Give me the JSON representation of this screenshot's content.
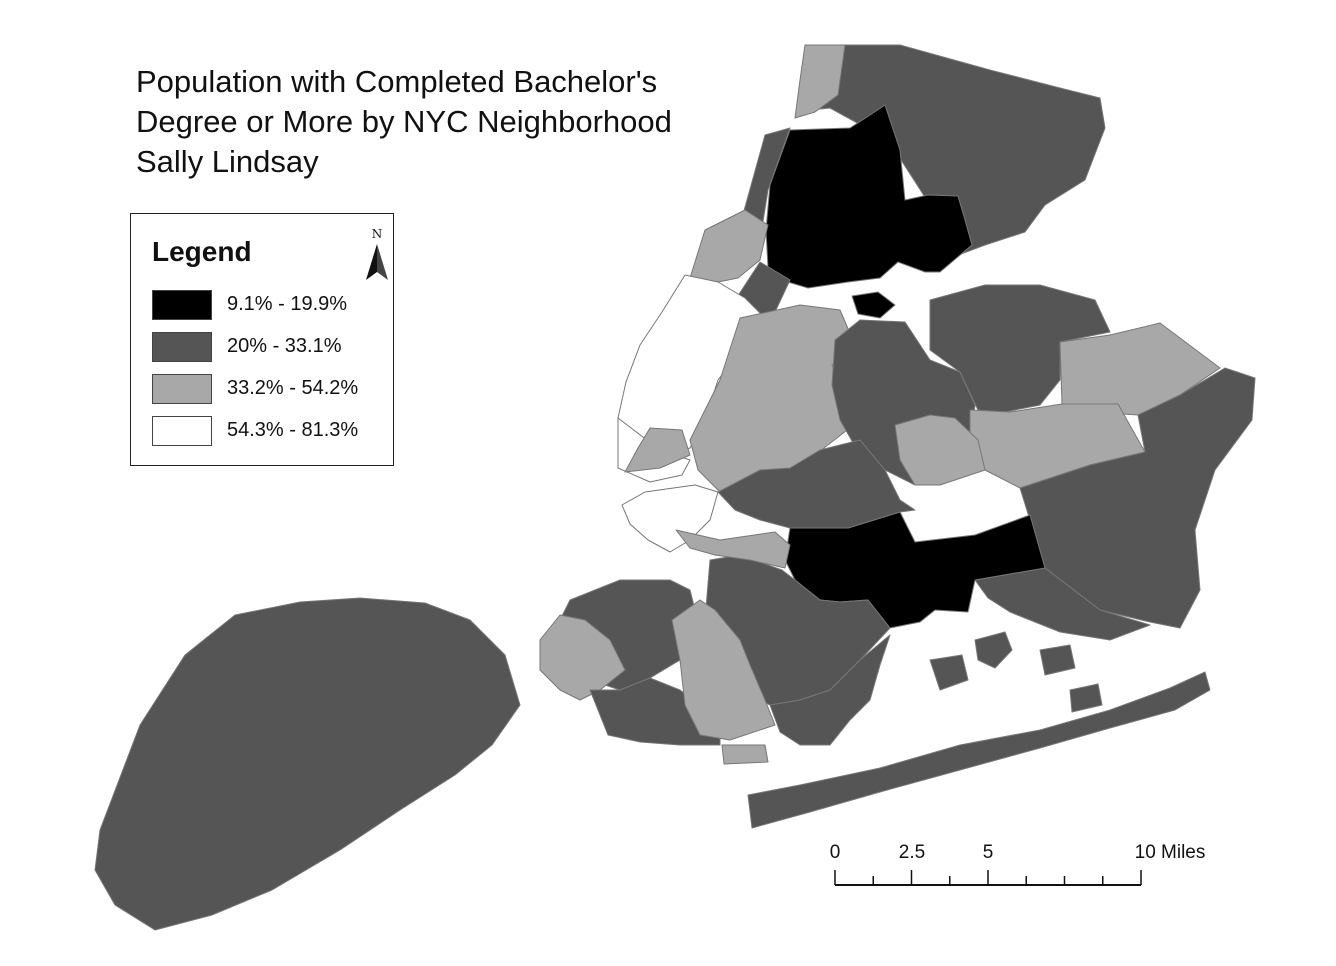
{
  "title": {
    "line1": "Population with Completed Bachelor's",
    "line2": "Degree or More by NYC Neighborhood",
    "line3": "Sally Lindsay"
  },
  "legend": {
    "title": "Legend",
    "classes": [
      {
        "label": "9.1% - 19.9%",
        "color": "#000000"
      },
      {
        "label": "20% - 33.1%",
        "color": "#555555"
      },
      {
        "label": "33.2% - 54.2%",
        "color": "#a8a8a8"
      },
      {
        "label": "54.3% - 81.3%",
        "color": "#ffffff"
      }
    ]
  },
  "north_arrow": {
    "label": "N",
    "icon": "north-arrow-icon"
  },
  "scale_bar": {
    "labels": [
      "0",
      "2.5",
      "5",
      "10 Miles"
    ],
    "values": [
      0,
      2.5,
      5,
      10
    ],
    "units": "Miles"
  }
}
